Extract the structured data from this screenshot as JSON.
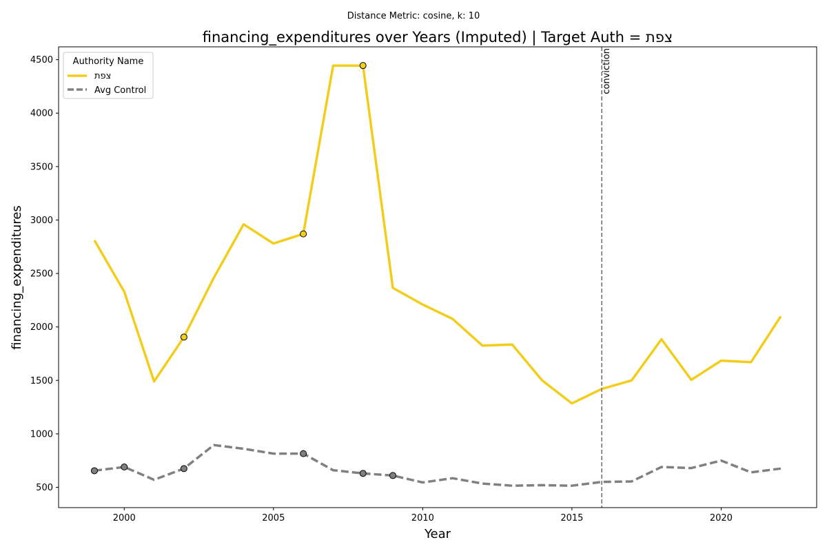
{
  "chart_data": {
    "type": "line",
    "suptitle": "Distance Metric: cosine, k: 10",
    "title": "financing_expenditures over Years (Imputed) | Target Auth = צפת",
    "xlabel": "Year",
    "ylabel": "financing_expenditures",
    "xlim": [
      1997.8,
      2023.2
    ],
    "ylim": [
      310,
      4620
    ],
    "x_ticks": [
      2000,
      2005,
      2010,
      2015,
      2020
    ],
    "y_ticks": [
      500,
      1000,
      1500,
      2000,
      2500,
      3000,
      3500,
      4000,
      4500
    ],
    "x": [
      1999,
      2000,
      2001,
      2002,
      2003,
      2004,
      2005,
      2006,
      2007,
      2008,
      2009,
      2010,
      2011,
      2012,
      2013,
      2014,
      2015,
      2016,
      2017,
      2018,
      2019,
      2020,
      2021,
      2022
    ],
    "series": [
      {
        "name": "צפת",
        "color": "#f2cd1c",
        "style": "solid",
        "values": [
          2810,
          2330,
          1490,
          1905,
          2460,
          2960,
          2780,
          2870,
          4445,
          4445,
          2365,
          2210,
          2075,
          1825,
          1835,
          1500,
          1285,
          1420,
          1500,
          1885,
          1505,
          1685,
          1670,
          2100
        ],
        "imputed_x": [
          2002,
          2006,
          2008
        ],
        "imputed_values": [
          1905,
          2870,
          4445
        ]
      },
      {
        "name": "Avg Control",
        "color": "#808080",
        "style": "dashed",
        "values": [
          655,
          690,
          570,
          675,
          895,
          860,
          815,
          815,
          660,
          630,
          610,
          545,
          585,
          535,
          515,
          520,
          515,
          550,
          555,
          690,
          680,
          750,
          640,
          675
        ],
        "imputed_x": [
          1999,
          2000,
          2002,
          2006,
          2008,
          2009
        ],
        "imputed_values": [
          655,
          690,
          675,
          815,
          630,
          610
        ]
      }
    ],
    "vline": {
      "x": 2016,
      "label": "conviction",
      "color": "#808080"
    },
    "legend": {
      "title": "Authority Name",
      "position": "top-left"
    },
    "grid": false
  }
}
